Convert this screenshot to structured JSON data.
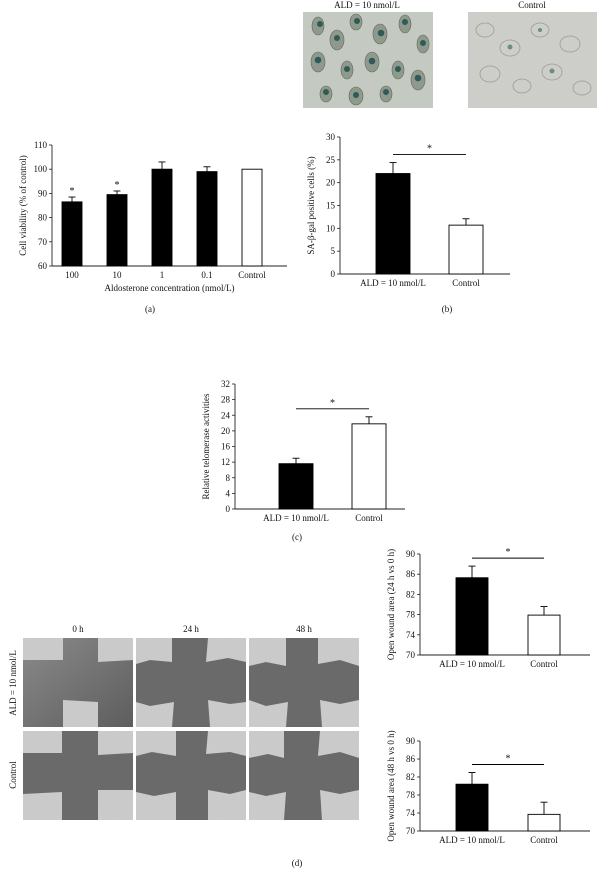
{
  "panel_labels": {
    "a": "(a)",
    "b": "(b)",
    "c": "(c)",
    "d": "(d)"
  },
  "micrographs": {
    "left_title": "ALD = 10 nmol/L",
    "right_title": "Control"
  },
  "wound_images": {
    "columns": [
      "0 h",
      "24 h",
      "48 h"
    ],
    "rows": [
      "ALD = 10 nmol/L",
      "Control"
    ]
  },
  "colors": {
    "treated_bar": "#000000",
    "control_bar": "#ffffff",
    "axis": "#222222"
  },
  "chart_data": [
    {
      "id": "a",
      "type": "bar",
      "categories": [
        "100",
        "10",
        "1",
        "0.1",
        "Control"
      ],
      "values": [
        86.5,
        89.5,
        100,
        99,
        100
      ],
      "errors": [
        2,
        1.5,
        3,
        2,
        0
      ],
      "fills": [
        "#000000",
        "#000000",
        "#000000",
        "#000000",
        "#ffffff"
      ],
      "significance": [
        "*",
        "*",
        "",
        "",
        ""
      ],
      "ylabel": "Cell viability (% of control)",
      "xlabel": "Aldosterone concentration (nmol/L)",
      "ylim": [
        60,
        110
      ],
      "yticks": [
        60,
        70,
        80,
        90,
        100,
        110
      ],
      "grid": false
    },
    {
      "id": "b",
      "type": "bar",
      "categories": [
        "ALD = 10 nmol/L",
        "Control"
      ],
      "values": [
        22,
        10.7
      ],
      "errors": [
        2.4,
        1.4
      ],
      "fills": [
        "#000000",
        "#ffffff"
      ],
      "bracket": "*",
      "ylabel": "SA-β-gal positive cells (%)",
      "xlabel": "",
      "ylim": [
        0,
        30
      ],
      "yticks": [
        0,
        5,
        10,
        15,
        20,
        25,
        30
      ],
      "grid": false
    },
    {
      "id": "c",
      "type": "bar",
      "categories": [
        "ALD = 10 nmol/L",
        "Control"
      ],
      "values": [
        11.6,
        21.8
      ],
      "errors": [
        1.4,
        1.8
      ],
      "fills": [
        "#000000",
        "#ffffff"
      ],
      "bracket": "*",
      "ylabel": "Relative telomerase activities",
      "xlabel": "",
      "ylim": [
        0,
        32
      ],
      "yticks": [
        0,
        4,
        8,
        12,
        16,
        20,
        24,
        28,
        32
      ],
      "grid": false
    },
    {
      "id": "d1",
      "type": "bar",
      "categories": [
        "ALD = 10 nmol/L",
        "Control"
      ],
      "values": [
        85.3,
        77.9
      ],
      "errors": [
        2.3,
        1.7
      ],
      "fills": [
        "#000000",
        "#ffffff"
      ],
      "bracket": "*",
      "ylabel": "Open wound area (24 h vs 0 h)",
      "xlabel": "",
      "ylim": [
        70,
        90
      ],
      "yticks": [
        70,
        74,
        78,
        82,
        86,
        90
      ],
      "grid": false
    },
    {
      "id": "d2",
      "type": "bar",
      "categories": [
        "ALD = 10 nmol/L",
        "Control"
      ],
      "values": [
        80.4,
        73.7
      ],
      "errors": [
        2.6,
        2.7
      ],
      "fills": [
        "#000000",
        "#ffffff"
      ],
      "bracket": "*",
      "ylabel": "Open wound area (48 h vs 0 h)",
      "xlabel": "",
      "ylim": [
        70,
        90
      ],
      "yticks": [
        70,
        74,
        78,
        82,
        86,
        90
      ],
      "grid": false
    }
  ]
}
